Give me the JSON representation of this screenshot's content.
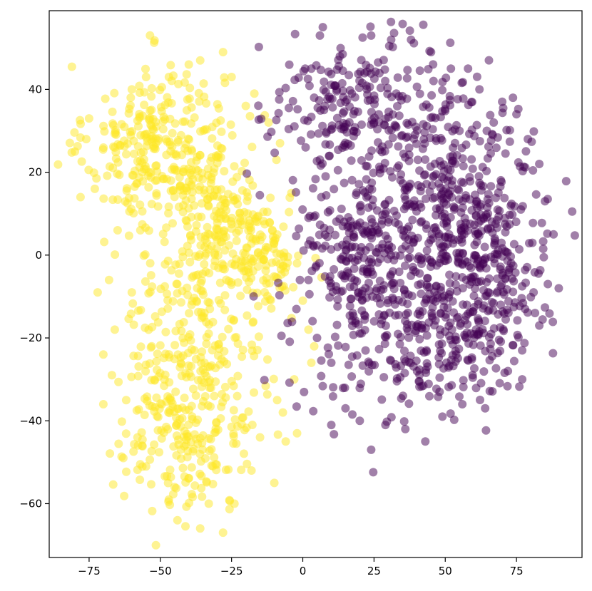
{
  "chart_data": {
    "type": "scatter",
    "title": "",
    "xlabel": "",
    "ylabel": "",
    "xlim": [
      -89,
      98
    ],
    "ylim": [
      -73,
      59
    ],
    "grid": false,
    "x_ticks": [
      -75,
      -50,
      -25,
      0,
      25,
      50,
      75
    ],
    "x_tick_labels": [
      "−75",
      "−50",
      "−25",
      "0",
      "25",
      "50",
      "75"
    ],
    "y_ticks": [
      -60,
      -40,
      -20,
      0,
      20,
      40
    ],
    "y_tick_labels": [
      "−60",
      "−40",
      "−20",
      "0",
      "20",
      "40"
    ],
    "point_alpha": 0.5,
    "series": [
      {
        "color": "#fde725",
        "clusters": [
          {
            "center": [
              -52,
              26
            ],
            "spread": [
              12,
              10
            ],
            "count": 260
          },
          {
            "center": [
              -30,
              10
            ],
            "spread": [
              10,
              12
            ],
            "count": 200
          },
          {
            "center": [
              -14,
              0
            ],
            "spread": [
              7,
              6
            ],
            "count": 110
          },
          {
            "center": [
              -38,
              -18
            ],
            "spread": [
              12,
              10
            ],
            "count": 160
          },
          {
            "center": [
              -40,
              -42
            ],
            "spread": [
              12,
              10
            ],
            "count": 220
          }
        ],
        "points": [
          [
            -80,
            25
          ],
          [
            -78,
            14
          ],
          [
            -76,
            28
          ],
          [
            -73,
            16
          ],
          [
            -72,
            -9
          ],
          [
            -70,
            -24
          ],
          [
            -70,
            -36
          ],
          [
            -67,
            -29
          ],
          [
            -66,
            -18
          ],
          [
            -63,
            -49
          ],
          [
            -65,
            6
          ],
          [
            -68,
            -6
          ],
          [
            -60,
            40
          ],
          [
            -55,
            43
          ],
          [
            -47,
            43
          ],
          [
            -40,
            46
          ],
          [
            -36,
            47
          ],
          [
            -28,
            49
          ],
          [
            -17,
            39
          ],
          [
            -8,
            27
          ],
          [
            -4,
            15
          ],
          [
            -2,
            -2
          ],
          [
            0,
            -11
          ],
          [
            2,
            -18
          ],
          [
            3,
            -26
          ],
          [
            4,
            -22
          ],
          [
            -3,
            -30
          ],
          [
            -6,
            -45
          ],
          [
            -10,
            -55
          ],
          [
            -18,
            -52
          ],
          [
            -24,
            -60
          ],
          [
            -28,
            -67
          ],
          [
            -36,
            -66
          ],
          [
            -44,
            -64
          ],
          [
            -47,
            -59
          ],
          [
            -55,
            -51
          ],
          [
            -58,
            -44
          ],
          [
            -62,
            -35
          ],
          [
            -12,
            32
          ],
          [
            -20,
            36
          ],
          [
            -25,
            43
          ],
          [
            -45,
            -56
          ],
          [
            -33,
            -60
          ],
          [
            -15,
            -44
          ],
          [
            -9,
            -35
          ],
          [
            -7,
            -38
          ],
          [
            -2,
            -43
          ],
          [
            -60,
            -9
          ],
          [
            -57,
            6
          ],
          [
            -75,
            33
          ]
        ]
      },
      {
        "color": "#440154",
        "clusters": [
          {
            "center": [
              20,
              35
            ],
            "spread": [
              16,
              9
            ],
            "count": 230
          },
          {
            "center": [
              48,
              18
            ],
            "spread": [
              17,
              12
            ],
            "count": 240
          },
          {
            "center": [
              58,
              0
            ],
            "spread": [
              16,
              11
            ],
            "count": 320
          },
          {
            "center": [
              18,
              0
            ],
            "spread": [
              11,
              10
            ],
            "count": 170
          },
          {
            "center": [
              32,
              -20
            ],
            "spread": [
              15,
              10
            ],
            "count": 200
          },
          {
            "center": [
              62,
              -18
            ],
            "spread": [
              11,
              9
            ],
            "count": 110
          }
        ],
        "points": [
          [
            3,
            45
          ],
          [
            6,
            53
          ],
          [
            13,
            48
          ],
          [
            24,
            53
          ],
          [
            31,
            52
          ],
          [
            38,
            52
          ],
          [
            45,
            49
          ],
          [
            52,
            45
          ],
          [
            58,
            45
          ],
          [
            62,
            40
          ],
          [
            70,
            37
          ],
          [
            75,
            34
          ],
          [
            79,
            28
          ],
          [
            83,
            22
          ],
          [
            85,
            13
          ],
          [
            88,
            5
          ],
          [
            86,
            -7
          ],
          [
            83,
            -17
          ],
          [
            77,
            -23
          ],
          [
            72,
            -28
          ],
          [
            64,
            -37
          ],
          [
            56,
            -36
          ],
          [
            49,
            -39
          ],
          [
            43,
            -45
          ],
          [
            36,
            -42
          ],
          [
            29,
            -41
          ],
          [
            24,
            -47
          ],
          [
            20,
            -40
          ],
          [
            15,
            -37
          ],
          [
            10,
            -26
          ],
          [
            5,
            -20
          ],
          [
            2,
            -6
          ],
          [
            -1,
            -6
          ],
          [
            2,
            9
          ],
          [
            1,
            26
          ],
          [
            4,
            38
          ],
          [
            8,
            19
          ],
          [
            48,
            -33
          ],
          [
            78,
            -13
          ],
          [
            81,
            -9
          ],
          [
            10,
            -41
          ],
          [
            67,
            32
          ],
          [
            77,
            -30
          ],
          [
            25,
            32
          ],
          [
            55,
            30
          ]
        ]
      }
    ]
  }
}
